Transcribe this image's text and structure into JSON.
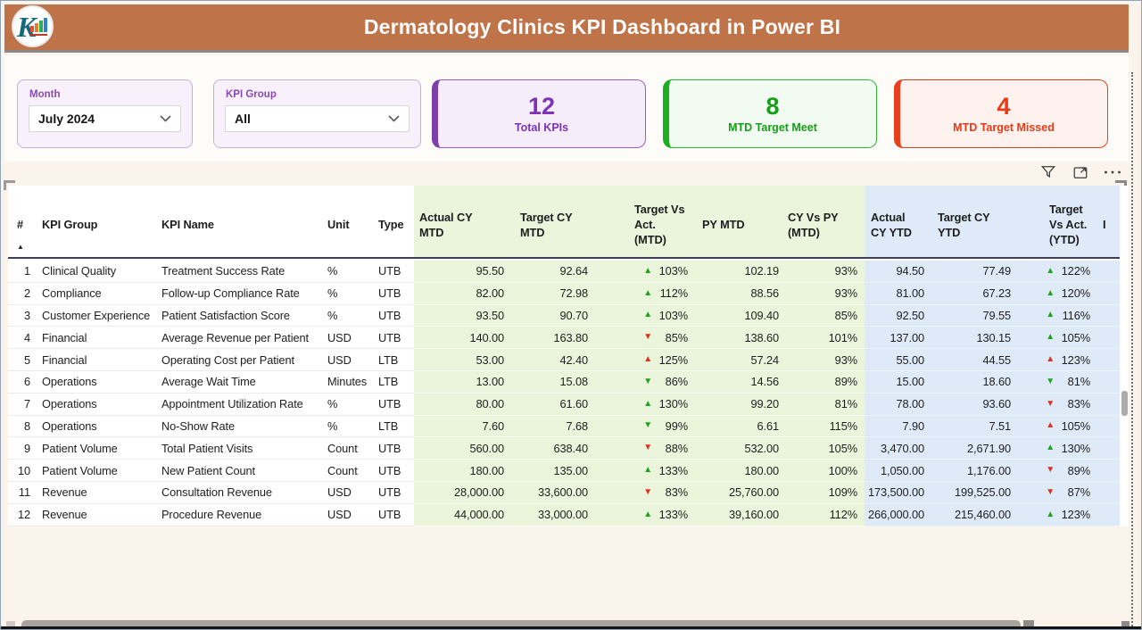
{
  "header": {
    "title": "Dermatology Clinics KPI Dashboard in Power BI",
    "logo_letter": "K"
  },
  "slicers": {
    "month": {
      "label": "Month",
      "value": "July 2024"
    },
    "kpi_group": {
      "label": "KPI Group",
      "value": "All"
    }
  },
  "cards": [
    {
      "value": "12",
      "label": "Total KPIs"
    },
    {
      "value": "8",
      "label": "MTD Target Meet"
    },
    {
      "value": "4",
      "label": "MTD Target Missed"
    }
  ],
  "colors": {
    "header_bar": "#BE7349",
    "page_bg": "#FBF4EC",
    "mtd_zone_bg": "#EAF5DC",
    "ytd_zone_bg": "#DEEAF7",
    "good_arrow": "#1CA41C",
    "bad_arrow": "#E22F1B",
    "card_total": {
      "accent": "#7E3FA8",
      "border": "#9A5BC0",
      "bg": "#F5EDFA",
      "text": "#7D32B8"
    },
    "card_meet": {
      "accent": "#1FAE1F",
      "border": "#2EB52E",
      "bg": "#F2FBF2",
      "text": "#169E16"
    },
    "card_missed": {
      "accent": "#E8401C",
      "border": "#E8401C",
      "bg": "#FDF2EE",
      "text": "#E83A17"
    }
  },
  "table": {
    "sort_indicator": "▲",
    "columns": [
      {
        "label": "#"
      },
      {
        "label": "KPI Group"
      },
      {
        "label": "KPI Name"
      },
      {
        "label": "Unit"
      },
      {
        "label": "Type"
      },
      {
        "label": "Actual CY\nMTD"
      },
      {
        "label": "Target CY\nMTD"
      },
      {
        "label": "Target Vs\nAct.\n(MTD)"
      },
      {
        "label": "PY MTD"
      },
      {
        "label": "CY Vs PY\n(MTD)"
      },
      {
        "label": "Actual\nCY YTD"
      },
      {
        "label": "Target CY\nYTD"
      },
      {
        "label": "Target\nVs Act.\n(YTD)"
      },
      {
        "label": "I"
      }
    ],
    "rows": [
      {
        "n": "1",
        "group": "Clinical Quality",
        "name": "Treatment Success Rate",
        "unit": "%",
        "type": "UTB",
        "a_mtd": "95.50",
        "t_mtd": "92.64",
        "tva_mtd": {
          "arrow": "up",
          "tone": "good",
          "val": "103%"
        },
        "py_mtd": "102.19",
        "cypy_mtd": "93%",
        "a_ytd": "94.50",
        "t_ytd": "77.49",
        "tva_ytd": {
          "arrow": "up",
          "tone": "good",
          "val": "122%"
        }
      },
      {
        "n": "2",
        "group": "Compliance",
        "name": "Follow-up Compliance Rate",
        "unit": "%",
        "type": "UTB",
        "a_mtd": "82.00",
        "t_mtd": "72.98",
        "tva_mtd": {
          "arrow": "up",
          "tone": "good",
          "val": "112%"
        },
        "py_mtd": "88.56",
        "cypy_mtd": "93%",
        "a_ytd": "81.00",
        "t_ytd": "67.23",
        "tva_ytd": {
          "arrow": "up",
          "tone": "good",
          "val": "120%"
        }
      },
      {
        "n": "3",
        "group": "Customer Experience",
        "name": "Patient Satisfaction Score",
        "unit": "%",
        "type": "UTB",
        "a_mtd": "93.50",
        "t_mtd": "90.70",
        "tva_mtd": {
          "arrow": "up",
          "tone": "good",
          "val": "103%"
        },
        "py_mtd": "109.40",
        "cypy_mtd": "85%",
        "a_ytd": "92.50",
        "t_ytd": "79.55",
        "tva_ytd": {
          "arrow": "up",
          "tone": "good",
          "val": "116%"
        }
      },
      {
        "n": "4",
        "group": "Financial",
        "name": "Average Revenue per Patient",
        "unit": "USD",
        "type": "UTB",
        "a_mtd": "140.00",
        "t_mtd": "163.80",
        "tva_mtd": {
          "arrow": "down",
          "tone": "bad",
          "val": "85%"
        },
        "py_mtd": "138.60",
        "cypy_mtd": "101%",
        "a_ytd": "137.00",
        "t_ytd": "130.15",
        "tva_ytd": {
          "arrow": "up",
          "tone": "good",
          "val": "105%"
        }
      },
      {
        "n": "5",
        "group": "Financial",
        "name": "Operating Cost per Patient",
        "unit": "USD",
        "type": "LTB",
        "a_mtd": "53.00",
        "t_mtd": "42.40",
        "tva_mtd": {
          "arrow": "up",
          "tone": "bad",
          "val": "125%"
        },
        "py_mtd": "57.24",
        "cypy_mtd": "93%",
        "a_ytd": "55.00",
        "t_ytd": "44.55",
        "tva_ytd": {
          "arrow": "up",
          "tone": "bad",
          "val": "123%"
        }
      },
      {
        "n": "6",
        "group": "Operations",
        "name": "Average Wait Time",
        "unit": "Minutes",
        "type": "LTB",
        "a_mtd": "13.00",
        "t_mtd": "15.08",
        "tva_mtd": {
          "arrow": "down",
          "tone": "good",
          "val": "86%"
        },
        "py_mtd": "14.56",
        "cypy_mtd": "89%",
        "a_ytd": "15.00",
        "t_ytd": "18.60",
        "tva_ytd": {
          "arrow": "down",
          "tone": "good",
          "val": "81%"
        }
      },
      {
        "n": "7",
        "group": "Operations",
        "name": "Appointment Utilization Rate",
        "unit": "%",
        "type": "UTB",
        "a_mtd": "80.00",
        "t_mtd": "61.60",
        "tva_mtd": {
          "arrow": "up",
          "tone": "good",
          "val": "130%"
        },
        "py_mtd": "99.20",
        "cypy_mtd": "81%",
        "a_ytd": "78.00",
        "t_ytd": "93.60",
        "tva_ytd": {
          "arrow": "down",
          "tone": "bad",
          "val": "83%"
        }
      },
      {
        "n": "8",
        "group": "Operations",
        "name": "No-Show Rate",
        "unit": "%",
        "type": "LTB",
        "a_mtd": "7.60",
        "t_mtd": "7.68",
        "tva_mtd": {
          "arrow": "down",
          "tone": "good",
          "val": "99%"
        },
        "py_mtd": "6.61",
        "cypy_mtd": "115%",
        "a_ytd": "7.90",
        "t_ytd": "7.51",
        "tva_ytd": {
          "arrow": "up",
          "tone": "bad",
          "val": "105%"
        }
      },
      {
        "n": "9",
        "group": "Patient Volume",
        "name": "Total Patient Visits",
        "unit": "Count",
        "type": "UTB",
        "a_mtd": "560.00",
        "t_mtd": "638.40",
        "tva_mtd": {
          "arrow": "down",
          "tone": "bad",
          "val": "88%"
        },
        "py_mtd": "532.00",
        "cypy_mtd": "105%",
        "a_ytd": "3,470.00",
        "t_ytd": "2,671.90",
        "tva_ytd": {
          "arrow": "up",
          "tone": "good",
          "val": "130%"
        }
      },
      {
        "n": "10",
        "group": "Patient Volume",
        "name": "New Patient Count",
        "unit": "Count",
        "type": "UTB",
        "a_mtd": "180.00",
        "t_mtd": "135.00",
        "tva_mtd": {
          "arrow": "up",
          "tone": "good",
          "val": "133%"
        },
        "py_mtd": "180.00",
        "cypy_mtd": "100%",
        "a_ytd": "1,050.00",
        "t_ytd": "1,176.00",
        "tva_ytd": {
          "arrow": "down",
          "tone": "bad",
          "val": "89%"
        }
      },
      {
        "n": "11",
        "group": "Revenue",
        "name": "Consultation Revenue",
        "unit": "USD",
        "type": "UTB",
        "a_mtd": "28,000.00",
        "t_mtd": "33,600.00",
        "tva_mtd": {
          "arrow": "down",
          "tone": "bad",
          "val": "83%"
        },
        "py_mtd": "25,760.00",
        "cypy_mtd": "109%",
        "a_ytd": "173,500.00",
        "t_ytd": "199,525.00",
        "tva_ytd": {
          "arrow": "down",
          "tone": "bad",
          "val": "87%"
        }
      },
      {
        "n": "12",
        "group": "Revenue",
        "name": "Procedure Revenue",
        "unit": "USD",
        "type": "UTB",
        "a_mtd": "44,000.00",
        "t_mtd": "33,000.00",
        "tva_mtd": {
          "arrow": "up",
          "tone": "good",
          "val": "133%"
        },
        "py_mtd": "39,160.00",
        "cypy_mtd": "112%",
        "a_ytd": "266,000.00",
        "t_ytd": "215,460.00",
        "tva_ytd": {
          "arrow": "up",
          "tone": "good",
          "val": "123%"
        }
      }
    ]
  }
}
